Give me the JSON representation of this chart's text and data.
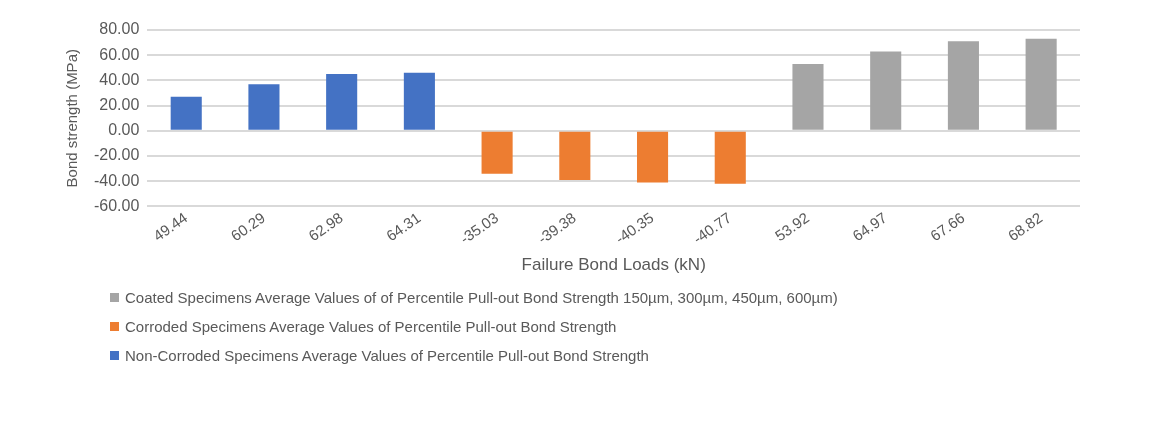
{
  "chart_data": {
    "type": "bar",
    "xlabel": "Failure Bond Loads (kN)",
    "ylabel": "Bond strength (MPa)",
    "categories": [
      "49.44",
      "60.29",
      "62.98",
      "64.31",
      "-35.03",
      "-39.38",
      "-40.35",
      "-40.77",
      "53.92",
      "64.97",
      "67.66",
      "68.82"
    ],
    "series": [
      {
        "name": "Coated Specimens Average Values of of  Percentile Pull-out Bond Strength  150µm, 300µm, 450µm, 600µm)",
        "color": "#a5a5a5",
        "values": [
          null,
          null,
          null,
          null,
          null,
          null,
          null,
          null,
          53,
          63,
          71,
          73
        ]
      },
      {
        "name": "Corroded Specimens Average Values of  Percentile Pull-out Bond Strength",
        "color": "#ed7d31",
        "values": [
          null,
          null,
          null,
          null,
          -34,
          -39,
          -41,
          -42,
          null,
          null,
          null,
          null
        ]
      },
      {
        "name": "Non-Corroded Specimens Average Values of  Percentile Pull-out Bond Strength",
        "color": "#4472c4",
        "values": [
          27,
          37,
          45,
          46,
          null,
          null,
          null,
          null,
          null,
          null,
          null,
          null
        ]
      }
    ],
    "ylim": [
      -60,
      80
    ],
    "yticks": [
      {
        "value": -60,
        "label": "-60.00"
      },
      {
        "value": -40,
        "label": "-40.00"
      },
      {
        "value": -20,
        "label": "-20.00"
      },
      {
        "value": 0,
        "label": "0.00"
      },
      {
        "value": 20,
        "label": "20.00"
      },
      {
        "value": 40,
        "label": "40.00"
      },
      {
        "value": 60,
        "label": "60.00"
      },
      {
        "value": 80,
        "label": "80.00"
      }
    ],
    "grid": "y",
    "legend": "bottom"
  }
}
